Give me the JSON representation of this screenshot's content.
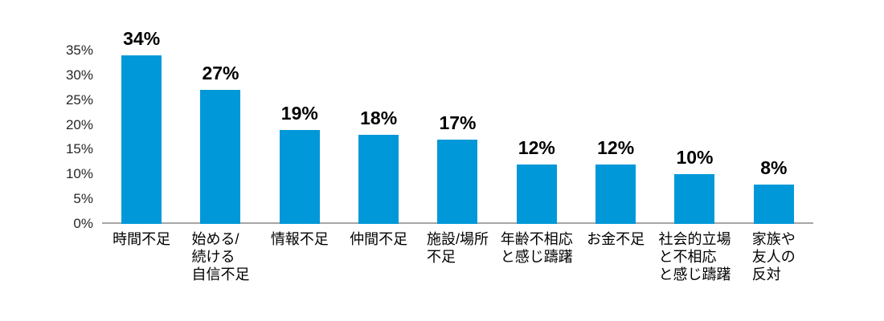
{
  "chart_data": {
    "type": "bar",
    "title": "",
    "xlabel": "",
    "ylabel": "",
    "categories": [
      "時間不足",
      "始める/\n続ける\n自信不足",
      "情報不足",
      "仲間不足",
      "施設/場所\n不足",
      "年齢不相応\nと感じ躊躇",
      "お金不足",
      "社会的立場\nと不相応\nと感じ躊躇",
      "家族や\n友人の\n反対"
    ],
    "values": [
      34,
      27,
      19,
      18,
      17,
      12,
      12,
      10,
      8
    ],
    "data_labels": [
      "34%",
      "27%",
      "19%",
      "18%",
      "17%",
      "12%",
      "12%",
      "10%",
      "8%"
    ],
    "y_ticks": [
      "0%",
      "5%",
      "10%",
      "15%",
      "20%",
      "25%",
      "30%",
      "35%"
    ],
    "ylim": [
      0,
      35
    ],
    "grid": false,
    "legend": false,
    "colors": {
      "bar": "#0098D8",
      "axis_line": "#A6A6A6",
      "data_label": "#000000",
      "tick_label": "#262626"
    }
  }
}
